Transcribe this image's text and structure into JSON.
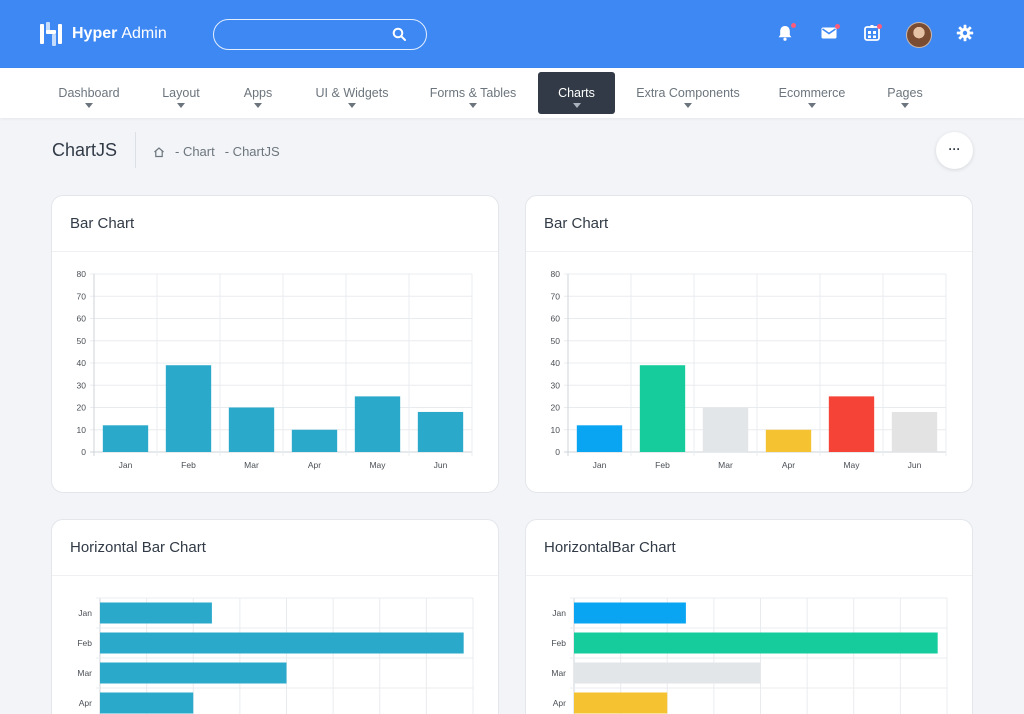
{
  "header": {
    "brand_bold": "Hyper",
    "brand_light": "Admin",
    "search_placeholder": "",
    "icons": [
      "bell-icon",
      "mail-icon",
      "apps-icon",
      "avatar",
      "gear-icon"
    ],
    "accent": "#3e88f3"
  },
  "nav": {
    "items": [
      {
        "label": "Dashboard",
        "active": false
      },
      {
        "label": "Layout",
        "active": false
      },
      {
        "label": "Apps",
        "active": false
      },
      {
        "label": "UI & Widgets",
        "active": false
      },
      {
        "label": "Forms & Tables",
        "active": false
      },
      {
        "label": "Charts",
        "active": true
      },
      {
        "label": "Extra Components",
        "active": false
      },
      {
        "label": "Ecommerce",
        "active": false
      },
      {
        "label": "Pages",
        "active": false
      }
    ]
  },
  "page": {
    "title": "ChartJS",
    "breadcrumb": [
      "- Chart",
      "- ChartJS"
    ],
    "more_label": "···"
  },
  "cards": [
    {
      "title": "Bar Chart"
    },
    {
      "title": "Bar Chart"
    },
    {
      "title": "Horizontal Bar Chart"
    },
    {
      "title": "HorizontalBar Chart"
    }
  ],
  "chart_data": [
    {
      "type": "bar",
      "categories": [
        "Jan",
        "Feb",
        "Mar",
        "Apr",
        "May",
        "Jun"
      ],
      "values": [
        12,
        39,
        20,
        10,
        25,
        18
      ],
      "ylim": [
        0,
        80
      ],
      "yticks": [
        0,
        10,
        20,
        30,
        40,
        50,
        60,
        70,
        80
      ],
      "colors": [
        "#2aa9cb"
      ],
      "grid": true
    },
    {
      "type": "bar",
      "categories": [
        "Jan",
        "Feb",
        "Mar",
        "Apr",
        "May",
        "Jun"
      ],
      "values": [
        12,
        39,
        20,
        10,
        25,
        18
      ],
      "ylim": [
        0,
        80
      ],
      "yticks": [
        0,
        10,
        20,
        30,
        40,
        50,
        60,
        70,
        80
      ],
      "colors": [
        "#0aa5f2",
        "#16cc9c",
        "#e3e6e9",
        "#f5c231",
        "#f54337",
        "#e3e3e3"
      ],
      "grid": true
    },
    {
      "type": "bar",
      "orientation": "horizontal",
      "categories": [
        "Jan",
        "Feb",
        "Mar",
        "Apr"
      ],
      "values": [
        12,
        39,
        20,
        10
      ],
      "xlim": [
        0,
        40
      ],
      "colors": [
        "#2aa9cb"
      ],
      "grid": true
    },
    {
      "type": "bar",
      "orientation": "horizontal",
      "categories": [
        "Jan",
        "Feb",
        "Mar",
        "Apr"
      ],
      "values": [
        12,
        39,
        20,
        10
      ],
      "xlim": [
        0,
        40
      ],
      "colors": [
        "#0aa5f2",
        "#16cc9c",
        "#e3e6e9",
        "#f5c231"
      ],
      "grid": true
    }
  ]
}
